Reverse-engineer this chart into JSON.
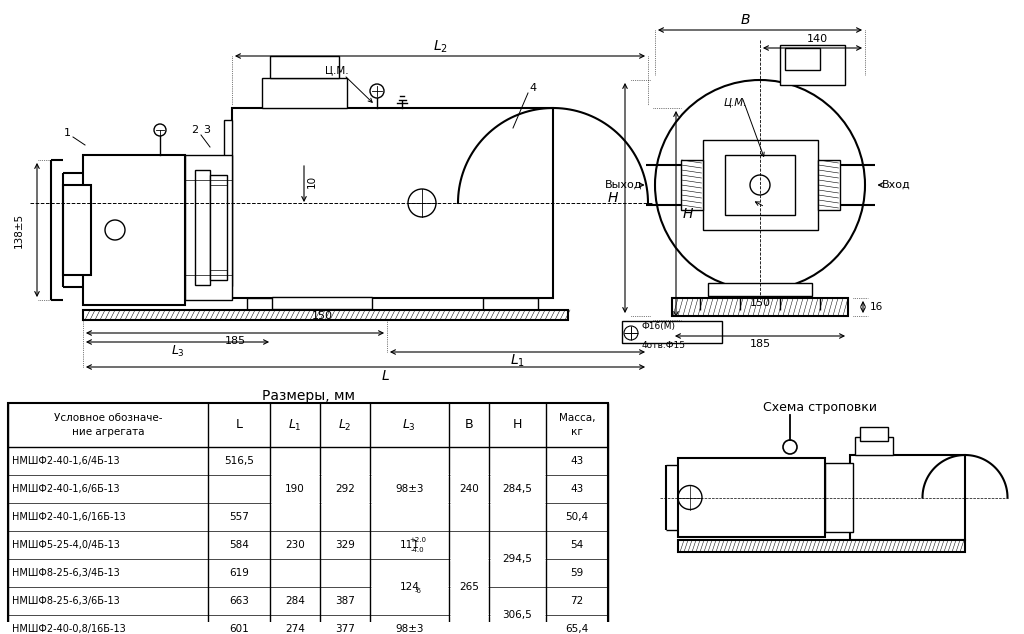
{
  "bg_color": "#ffffff",
  "table_title": "Размеры, мм",
  "col_headers": [
    "Условное обозначе-\nние агрегата",
    "L",
    "L1",
    "L2",
    "L3",
    "B",
    "H",
    "Масса,\nкг"
  ],
  "row_names": [
    "НМШФ2-40-1,6/4Б-13",
    "НМШФ2-40-1,6/6Б-13",
    "НМШФ2-40-1,6/16Б-13",
    "НМШФ5-25-4,0/4Б-13",
    "НМШФ8-25-6,3/4Б-13",
    "НМШФ8-25-6,3/6Б-13",
    "НМШФ2-40-0,8/16Б-13"
  ],
  "L_vals": [
    "516,5",
    "",
    "557",
    "584",
    "619",
    "663",
    "601"
  ],
  "mass_vals": [
    "43",
    "43",
    "50,4",
    "54",
    "59",
    "72",
    "65,4"
  ],
  "L1_merged": [
    [
      0,
      2,
      "190"
    ],
    [
      3,
      3,
      "230"
    ],
    [
      5,
      5,
      "284"
    ],
    [
      6,
      6,
      "274"
    ]
  ],
  "L2_merged": [
    [
      0,
      2,
      "292"
    ],
    [
      3,
      3,
      "329"
    ],
    [
      5,
      5,
      "387"
    ],
    [
      6,
      6,
      "377"
    ]
  ],
  "L3_merged": [
    [
      0,
      2,
      "98±3"
    ],
    [
      3,
      3,
      "111"
    ],
    [
      4,
      5,
      "124"
    ],
    [
      6,
      6,
      "98±3"
    ]
  ],
  "B_merged": [
    [
      0,
      2,
      "240"
    ],
    [
      3,
      6,
      "265"
    ]
  ],
  "H_merged": [
    [
      0,
      2,
      "284,5"
    ],
    [
      3,
      4,
      "294,5"
    ],
    [
      5,
      6,
      "306,5"
    ]
  ]
}
